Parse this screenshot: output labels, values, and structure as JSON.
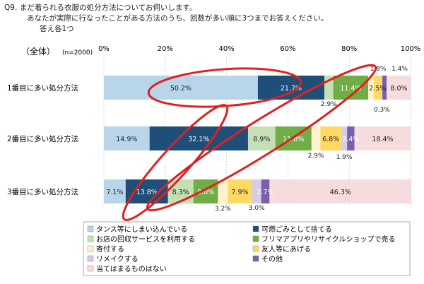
{
  "question": {
    "number": "Q9.",
    "line1": "まだ着られる衣服の処分方法についてお伺いします。",
    "line2": "あなたが実際に行なったことがある方法のうち、回数が多い順に3つまでお答えください。",
    "line3": "答え各1つ"
  },
  "chart_data": {
    "type": "bar",
    "stacked": true,
    "orientation": "horizontal",
    "percent": true,
    "group_label": "（全体）",
    "n_label": "(n=2000)",
    "x_ticks": [
      "0%",
      "20%",
      "40%",
      "60%",
      "80%",
      "100%"
    ],
    "xlim": [
      0,
      100
    ],
    "categories": [
      "1番目に多い処分方法",
      "2番目に多い処分方法",
      "3番目に多い処分方法"
    ],
    "series": [
      {
        "name": "タンス等にしまい込んでいる",
        "color": "#b9d5ea",
        "values": [
          50.2,
          14.9,
          7.1
        ],
        "labels": [
          "50.2%",
          "14.9%",
          "7.1%"
        ]
      },
      {
        "name": "可燃ごみとして捨てる",
        "color": "#1f4e79",
        "values": [
          21.7,
          32.1,
          13.8
        ],
        "labels": [
          "21.7%",
          "32.1%",
          "13.8%"
        ]
      },
      {
        "name": "お店の回収サービスを利用する",
        "color": "#c5e0b4",
        "values": [
          2.9,
          8.9,
          8.3
        ],
        "labels": [
          "2.9%",
          "8.9%",
          "8.3%"
        ]
      },
      {
        "name": "フリマアプリやリサイクルショップで売る",
        "color": "#70ad47",
        "values": [
          11.4,
          11.8,
          8.0
        ],
        "labels": [
          "11.4%",
          "11.8%",
          "8.0%"
        ]
      },
      {
        "name": "寄付する",
        "color": "#fff2cc",
        "values": [
          1.8,
          2.9,
          3.2
        ],
        "labels": [
          "1.8%",
          "2.9%",
          "3.2%"
        ]
      },
      {
        "name": "友人等にあげる",
        "color": "#ffd966",
        "values": [
          2.5,
          6.8,
          7.9
        ],
        "labels": [
          "2.5%",
          "6.8%",
          "7.9%"
        ]
      },
      {
        "name": "リメイクする",
        "color": "#d6cce8",
        "values": [
          0.3,
          1.9,
          3.0
        ],
        "labels": [
          "0.3%",
          "1.9%",
          "3.0%"
        ]
      },
      {
        "name": "その他",
        "color": "#7b5fa8",
        "values": [
          1.4,
          2.4,
          2.7
        ],
        "labels": [
          "1.4%",
          "2.4%",
          "2.7%"
        ]
      },
      {
        "name": "当てはまるものはない",
        "color": "#f6dcdc",
        "values": [
          8.0,
          18.4,
          46.3
        ],
        "labels": [
          "8.0%",
          "18.4%",
          "46.3%"
        ]
      }
    ],
    "legend_position": "bottom",
    "annotations": "hand-drawn red ellipses circling the 可燃ごみとして捨てる segments and the 1st-row labels",
    "highlight_color": "#e02020"
  }
}
